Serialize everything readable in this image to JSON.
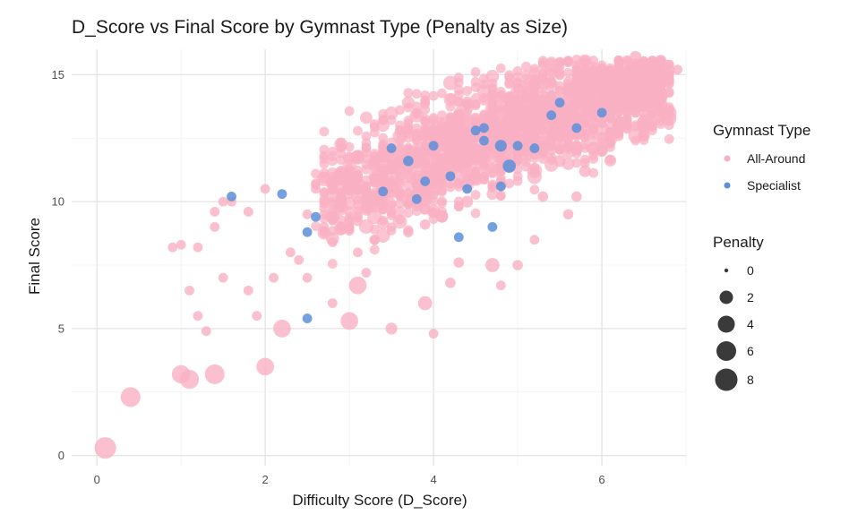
{
  "chart_data": {
    "type": "scatter",
    "title": "D_Score vs Final Score by Gymnast Type (Penalty as Size)",
    "xlabel": "Difficulty Score (D_Score)",
    "ylabel": "Final Score",
    "xlim": [
      -0.3,
      7.0
    ],
    "ylim": [
      -0.4,
      16.0
    ],
    "x_ticks": [
      0,
      2,
      4,
      6
    ],
    "y_ticks": [
      0,
      5,
      10,
      15
    ],
    "grid": true,
    "legend_position": "right",
    "colors": {
      "All-Around": "#f9b0c3",
      "Specialist": "#5b8fd9"
    },
    "color_legend": {
      "title": "Gymnast Type",
      "entries": [
        "All-Around",
        "Specialist"
      ]
    },
    "size_legend": {
      "title": "Penalty",
      "entries": [
        0,
        2,
        4,
        6,
        8
      ]
    },
    "series": [
      {
        "name": "All-Around",
        "points": [
          [
            0.1,
            0.3,
            7.5
          ],
          [
            0.4,
            2.3,
            6.0
          ],
          [
            1.0,
            3.2,
            5.0
          ],
          [
            1.1,
            3.0,
            5.5
          ],
          [
            1.4,
            3.2,
            6.0
          ],
          [
            2.0,
            3.5,
            4.5
          ],
          [
            2.2,
            5.0,
            4.5
          ],
          [
            3.0,
            5.3,
            4.5
          ],
          [
            3.1,
            6.7,
            4.5
          ],
          [
            3.9,
            6.0,
            2.5
          ],
          [
            3.5,
            5.0,
            1.5
          ],
          [
            4.0,
            4.8,
            0.8
          ],
          [
            2.8,
            6.0,
            0.8
          ],
          [
            2.5,
            7.0,
            0.8
          ],
          [
            1.5,
            7.0,
            0.8
          ],
          [
            1.2,
            5.5,
            0.8
          ],
          [
            1.3,
            4.9,
            0.8
          ],
          [
            1.9,
            5.5,
            0.8
          ],
          [
            1.1,
            6.5,
            0.8
          ],
          [
            0.9,
            8.2,
            0.8
          ],
          [
            1.0,
            8.3,
            0.8
          ],
          [
            1.2,
            8.2,
            0.8
          ],
          [
            1.4,
            9.0,
            0.8
          ],
          [
            1.4,
            9.6,
            0.8
          ],
          [
            1.5,
            10.0,
            0.8
          ],
          [
            1.6,
            10.0,
            0.8
          ],
          [
            1.8,
            9.6,
            0.8
          ],
          [
            1.8,
            6.5,
            0.8
          ],
          [
            2.0,
            10.5,
            0.8
          ],
          [
            2.1,
            7.0,
            0.8
          ],
          [
            2.3,
            8.0,
            0.8
          ],
          [
            2.4,
            7.7,
            0.8
          ],
          [
            2.5,
            9.5,
            0.8
          ],
          [
            2.6,
            10.5,
            0.8
          ],
          [
            2.7,
            9.0,
            0.8
          ],
          [
            2.8,
            8.4,
            0.8
          ],
          [
            2.9,
            10.1,
            1.5
          ],
          [
            3.0,
            9.2,
            0.8
          ],
          [
            3.1,
            8.0,
            0.8
          ],
          [
            3.2,
            7.2,
            0.8
          ],
          [
            4.7,
            7.5,
            2.5
          ],
          [
            5.0,
            7.5,
            1.0
          ],
          [
            4.2,
            6.8,
            1.0
          ],
          [
            4.3,
            7.6,
            1.0
          ],
          [
            4.8,
            6.7,
            0.8
          ],
          [
            5.2,
            8.5,
            0.8
          ],
          [
            5.6,
            9.5,
            1.0
          ],
          [
            5.7,
            10.2,
            1.0
          ],
          [
            5.8,
            11.2,
            1.5
          ],
          [
            6.0,
            12.0,
            1.5
          ],
          [
            6.4,
            15.7,
            1.5
          ],
          [
            6.6,
            15.0,
            0.8
          ],
          [
            6.8,
            15.4,
            0.8
          ],
          [
            6.9,
            15.2,
            0.8
          ],
          [
            6.2,
            14.8,
            1.0
          ],
          [
            6.1,
            13.3,
            0.8
          ],
          [
            5.9,
            12.9,
            0.8
          ],
          [
            5.5,
            11.6,
            1.5
          ],
          [
            5.3,
            10.2,
            1.0
          ],
          [
            5.1,
            11.8,
            1.5
          ],
          [
            3.6,
            11.2,
            2.0
          ],
          [
            3.4,
            10.5,
            2.0
          ],
          [
            3.8,
            10.8,
            2.0
          ],
          [
            4.2,
            11.5,
            1.5
          ],
          [
            4.5,
            12.1,
            1.0
          ],
          [
            4.6,
            12.6,
            1.0
          ],
          [
            4.8,
            12.0,
            1.5
          ],
          [
            5.0,
            13.0,
            1.0
          ],
          [
            5.2,
            13.5,
            1.0
          ],
          [
            5.4,
            14.0,
            0.8
          ],
          [
            5.6,
            14.5,
            0.8
          ],
          [
            5.8,
            14.2,
            0.8
          ],
          [
            6.0,
            14.6,
            0.8
          ],
          [
            6.3,
            14.2,
            0.8
          ],
          [
            4.4,
            10.0,
            1.5
          ],
          [
            4.1,
            9.4,
            1.5
          ],
          [
            3.7,
            8.8,
            1.0
          ],
          [
            3.3,
            8.5,
            1.0
          ],
          [
            3.3,
            9.8,
            1.5
          ],
          [
            3.9,
            9.1,
            1.0
          ]
        ]
      },
      {
        "name": "Specialist",
        "points": [
          [
            1.6,
            10.2,
            0.8
          ],
          [
            2.2,
            10.3,
            0.8
          ],
          [
            2.5,
            8.8,
            0.8
          ],
          [
            2.5,
            5.4,
            0.8
          ],
          [
            2.6,
            9.4,
            0.8
          ],
          [
            3.4,
            10.4,
            0.8
          ],
          [
            3.5,
            12.1,
            0.8
          ],
          [
            3.7,
            11.6,
            1.0
          ],
          [
            3.9,
            10.8,
            0.8
          ],
          [
            4.0,
            12.2,
            0.8
          ],
          [
            4.2,
            11.0,
            0.8
          ],
          [
            4.3,
            8.6,
            0.8
          ],
          [
            4.4,
            10.5,
            0.8
          ],
          [
            4.6,
            12.4,
            0.8
          ],
          [
            4.6,
            12.9,
            0.8
          ],
          [
            4.8,
            12.2,
            1.5
          ],
          [
            4.8,
            10.6,
            0.8
          ],
          [
            4.9,
            11.4,
            2.0
          ],
          [
            5.0,
            12.2,
            0.8
          ],
          [
            5.2,
            12.1,
            0.8
          ],
          [
            5.4,
            13.4,
            0.8
          ],
          [
            5.5,
            13.9,
            0.8
          ],
          [
            5.7,
            12.9,
            0.8
          ],
          [
            6.0,
            13.5,
            0.8
          ],
          [
            4.7,
            9.0,
            0.8
          ],
          [
            3.8,
            10.1,
            0.8
          ],
          [
            4.5,
            12.8,
            0.8
          ]
        ]
      }
    ]
  }
}
